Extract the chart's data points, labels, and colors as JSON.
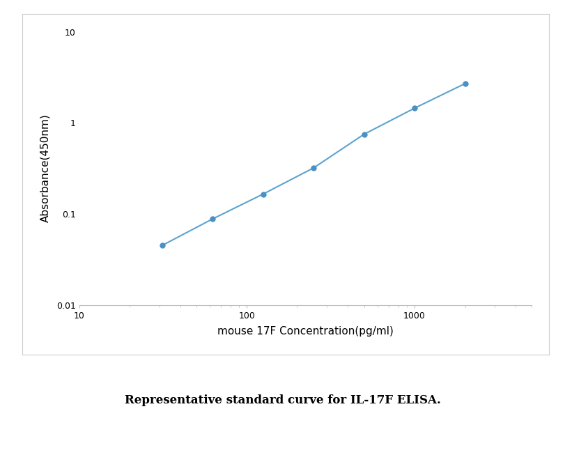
{
  "x": [
    31.25,
    62.5,
    125,
    250,
    500,
    1000,
    2000
  ],
  "y": [
    0.045,
    0.088,
    0.165,
    0.32,
    0.75,
    1.45,
    2.7
  ],
  "xlim": [
    10,
    5000
  ],
  "ylim": [
    0.01,
    10
  ],
  "xlabel": "mouse 17F Concentration(pg/ml)",
  "ylabel": "Absorbance(450nm)",
  "line_color": "#5ba3d0",
  "marker_color": "#4a90c4",
  "marker_size": 5,
  "line_width": 1.5,
  "caption": "Representative standard curve for IL-17F ELISA.",
  "caption_fontsize": 12,
  "xlabel_fontsize": 11,
  "ylabel_fontsize": 11,
  "tick_fontsize": 9,
  "background_color": "#ffffff",
  "plot_bg_color": "#ffffff",
  "border_color": "#bbbbbb",
  "box_border_color": "#cccccc"
}
